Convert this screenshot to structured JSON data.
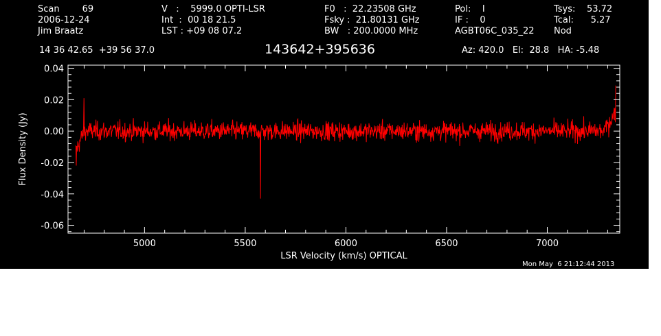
{
  "header": {
    "col1": [
      "Scan        69",
      "2006-12-24",
      "Jim Braatz"
    ],
    "col2": [
      "V   :    5999.0 OPTI-LSR",
      "Int  :  00 18 21.5",
      "LST : +09 08 07.2"
    ],
    "col3": [
      "F0   :  22.23508 GHz",
      "Fsky :  21.80131 GHz",
      "BW   : 200.0000 MHz"
    ],
    "col4": [
      "Pol:    I",
      "IF :    0",
      "AGBT06C_035_22"
    ],
    "col5": [
      "Tsys:    53.72",
      "Tcal:      5.27",
      "Nod"
    ],
    "coords": "14 36 42.65  +39 56 37.0",
    "object": "143642+395636",
    "azelha": "Az: 420.0   El:  28.8   HA: -5.48"
  },
  "timestamp": "Mon May  6 21:12:44 2013",
  "colors": {
    "background": "#000000",
    "axes": "#ffffff",
    "trace": "#ff0000"
  },
  "chart_data": {
    "type": "line",
    "title": "143642+395636",
    "xlabel": "LSR Velocity (km/s) OPTICAL",
    "ylabel": "Flux Density (Jy)",
    "xlim": [
      4620,
      7360
    ],
    "ylim": [
      -0.065,
      0.042
    ],
    "xticks": [
      5000,
      5500,
      6000,
      6500,
      7000
    ],
    "xtick_labels": [
      "5000",
      "5500",
      "6000",
      "6500",
      "7000"
    ],
    "yticks": [
      -0.06,
      -0.04,
      -0.02,
      0.0,
      0.02,
      0.04
    ],
    "ytick_labels": [
      "-0.06",
      "-0.04",
      "-0.02",
      "0.00",
      "0.02",
      "0.04"
    ],
    "grid": false,
    "series": [
      {
        "color": "#ff0000",
        "x_start": 4657,
        "x_end": 7340,
        "n_points": 1400,
        "noise_rms_jy": 0.006,
        "baseline_jy": 0.0,
        "features": [
          {
            "x": 4660,
            "y": -0.022
          },
          {
            "x": 4700,
            "y": 0.021
          },
          {
            "x": 5575,
            "y": -0.043
          },
          {
            "x": 7340,
            "y": 0.029
          }
        ]
      }
    ]
  }
}
